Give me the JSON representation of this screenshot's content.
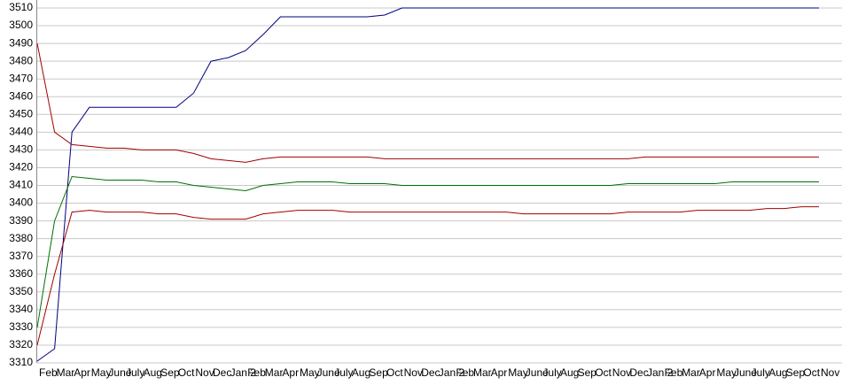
{
  "chart_data": {
    "type": "line",
    "categories": [
      "Feb",
      "Mar",
      "Apr",
      "May",
      "June",
      "July",
      "Aug",
      "Sep",
      "Oct",
      "Nov",
      "Dec",
      "Jan 2",
      "Feb",
      "Mar",
      "Apr",
      "May",
      "June",
      "July",
      "Aug",
      "Sep",
      "Oct",
      "Nov",
      "Dec",
      "Jan 2",
      "Feb",
      "Mar",
      "Apr",
      "May",
      "June",
      "July",
      "Aug",
      "Sep",
      "Oct",
      "Nov",
      "Dec",
      "Jan 2",
      "Feb",
      "Mar",
      "Apr",
      "May",
      "June",
      "July",
      "Aug",
      "Sep",
      "Oct",
      "Nov"
    ],
    "series": [
      {
        "color": "#000080",
        "values": [
          3311,
          3318,
          3440,
          3454,
          3454,
          3454,
          3454,
          3454,
          3454,
          3462,
          3480,
          3482,
          3486,
          3495,
          3505,
          3505,
          3505,
          3505,
          3505,
          3505,
          3506,
          3510,
          3510,
          3510,
          3510,
          3510,
          3510,
          3510,
          3510,
          3510,
          3510,
          3510,
          3510,
          3510,
          3510,
          3510,
          3510,
          3510,
          3510,
          3510,
          3510,
          3510,
          3510,
          3510,
          3510,
          3510
        ]
      },
      {
        "color": "#a00000",
        "values": [
          3490,
          3440,
          3433,
          3432,
          3431,
          3431,
          3430,
          3430,
          3430,
          3428,
          3425,
          3424,
          3423,
          3425,
          3426,
          3426,
          3426,
          3426,
          3426,
          3426,
          3425,
          3425,
          3425,
          3425,
          3425,
          3425,
          3425,
          3425,
          3425,
          3425,
          3425,
          3425,
          3425,
          3425,
          3425,
          3426,
          3426,
          3426,
          3426,
          3426,
          3426,
          3426,
          3426,
          3426,
          3426,
          3426
        ]
      },
      {
        "color": "#007000",
        "values": [
          3330,
          3390,
          3415,
          3414,
          3413,
          3413,
          3413,
          3412,
          3412,
          3410,
          3409,
          3408,
          3407,
          3410,
          3411,
          3412,
          3412,
          3412,
          3411,
          3411,
          3411,
          3410,
          3410,
          3410,
          3410,
          3410,
          3410,
          3410,
          3410,
          3410,
          3410,
          3410,
          3410,
          3410,
          3411,
          3411,
          3411,
          3411,
          3411,
          3411,
          3412,
          3412,
          3412,
          3412,
          3412,
          3412
        ]
      },
      {
        "color": "#a00000",
        "values": [
          3320,
          3360,
          3395,
          3396,
          3395,
          3395,
          3395,
          3394,
          3394,
          3392,
          3391,
          3391,
          3391,
          3394,
          3395,
          3396,
          3396,
          3396,
          3395,
          3395,
          3395,
          3395,
          3395,
          3395,
          3395,
          3395,
          3395,
          3395,
          3394,
          3394,
          3394,
          3394,
          3394,
          3394,
          3395,
          3395,
          3395,
          3395,
          3396,
          3396,
          3396,
          3396,
          3397,
          3397,
          3398,
          3398
        ]
      }
    ],
    "ylim": [
      3310,
      3510
    ],
    "yticks": [
      3310,
      3320,
      3330,
      3340,
      3350,
      3360,
      3370,
      3380,
      3390,
      3400,
      3410,
      3420,
      3430,
      3440,
      3450,
      3460,
      3470,
      3480,
      3490,
      3500,
      3510
    ],
    "grid": true
  }
}
